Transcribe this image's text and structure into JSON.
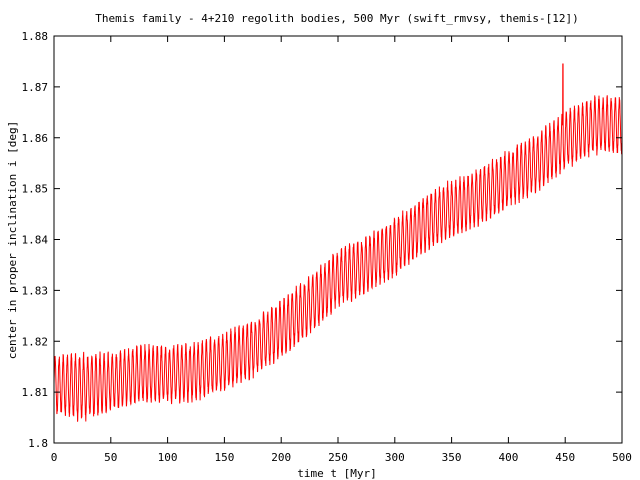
{
  "chart_data": {
    "type": "line",
    "title": "Themis family - 4+210 regolith bodies, 500 Myr (swift_rmvsy, themis-[12])",
    "xlabel": "time t [Myr]",
    "ylabel": "center in proper inclination i [deg]",
    "xlim": [
      0,
      500
    ],
    "ylim": [
      1.8,
      1.88
    ],
    "x_ticks": [
      "0",
      "50",
      "100",
      "150",
      "200",
      "250",
      "300",
      "350",
      "400",
      "450",
      "500"
    ],
    "y_ticks": [
      "1.8",
      "1.81",
      "1.82",
      "1.83",
      "1.84",
      "1.85",
      "1.86",
      "1.87",
      "1.88"
    ],
    "grid": false,
    "legend": "none",
    "series": [
      {
        "color": "#ff0000",
        "oscillation_period_myr": 3.6,
        "trend_x": [
          0,
          25,
          50,
          75,
          100,
          125,
          150,
          175,
          200,
          225,
          250,
          275,
          300,
          325,
          350,
          375,
          400,
          425,
          450,
          475,
          500
        ],
        "trend_center": [
          1.8115,
          1.811,
          1.812,
          1.8135,
          1.8135,
          1.814,
          1.816,
          1.8185,
          1.8225,
          1.827,
          1.8325,
          1.835,
          1.8385,
          1.843,
          1.846,
          1.8485,
          1.852,
          1.855,
          1.8595,
          1.8625,
          1.8625
        ],
        "amplitude": [
          0.0055,
          0.0065,
          0.0055,
          0.0055,
          0.0055,
          0.0055,
          0.0055,
          0.0055,
          0.0055,
          0.0055,
          0.0055,
          0.0055,
          0.0055,
          0.0055,
          0.0055,
          0.0055,
          0.0055,
          0.0055,
          0.0055,
          0.0055,
          0.0055
        ],
        "spikes": [
          {
            "x": 448,
            "y": 1.8745
          }
        ]
      }
    ]
  }
}
